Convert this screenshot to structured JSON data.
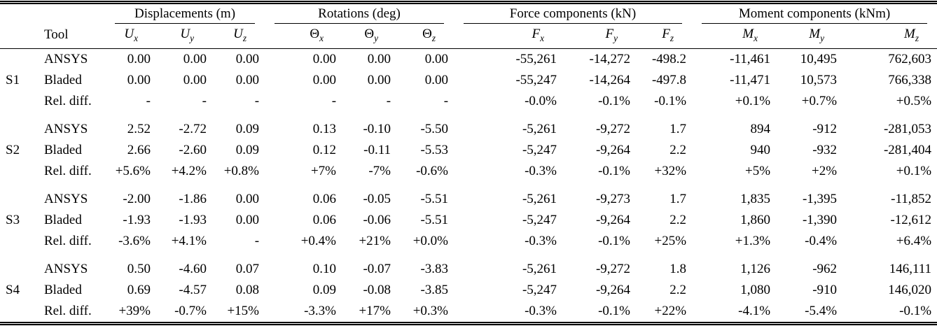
{
  "page": {
    "background": "#ffffff",
    "text_color": "#000000"
  },
  "chart_data": {
    "type": "table",
    "tool_header": "Tool",
    "column_groups": [
      {
        "label": "Displacements (m)"
      },
      {
        "label": "Rotations (deg)"
      },
      {
        "label": "Force components (kN)"
      },
      {
        "label": "Moment components (kNm)"
      }
    ],
    "columns": [
      {
        "base": "U",
        "sub": "x"
      },
      {
        "base": "U",
        "sub": "y"
      },
      {
        "base": "U",
        "sub": "z"
      },
      {
        "base": "Θ",
        "sub": "x"
      },
      {
        "base": "Θ",
        "sub": "y"
      },
      {
        "base": "Θ",
        "sub": "z"
      },
      {
        "base": "F",
        "sub": "x"
      },
      {
        "base": "F",
        "sub": "y"
      },
      {
        "base": "F",
        "sub": "z"
      },
      {
        "base": "M",
        "sub": "x"
      },
      {
        "base": "M",
        "sub": "y"
      },
      {
        "base": "M",
        "sub": "z"
      }
    ],
    "sections": [
      {
        "id": "S1",
        "rows": [
          {
            "tool": "ANSYS",
            "values": [
              "0.00",
              "0.00",
              "0.00",
              "0.00",
              "0.00",
              "0.00",
              "-55,261",
              "-14,272",
              "-498.2",
              "-11,461",
              "10,495",
              "762,603"
            ]
          },
          {
            "tool": "Bladed",
            "values": [
              "0.00",
              "0.00",
              "0.00",
              "0.00",
              "0.00",
              "0.00",
              "-55,247",
              "-14,264",
              "-497.8",
              "-11,471",
              "10,573",
              "766,338"
            ]
          },
          {
            "tool": "Rel. diff.",
            "values": [
              "-",
              "-",
              "-",
              "-",
              "-",
              "-",
              "-0.0%",
              "-0.1%",
              "-0.1%",
              "+0.1%",
              "+0.7%",
              "+0.5%"
            ]
          }
        ]
      },
      {
        "id": "S2",
        "rows": [
          {
            "tool": "ANSYS",
            "values": [
              "2.52",
              "-2.72",
              "0.09",
              "0.13",
              "-0.10",
              "-5.50",
              "-5,261",
              "-9,272",
              "1.7",
              "894",
              "-912",
              "-281,053"
            ]
          },
          {
            "tool": "Bladed",
            "values": [
              "2.66",
              "-2.60",
              "0.09",
              "0.12",
              "-0.11",
              "-5.53",
              "-5,247",
              "-9,264",
              "2.2",
              "940",
              "-932",
              "-281,404"
            ]
          },
          {
            "tool": "Rel. diff.",
            "values": [
              "+5.6%",
              "+4.2%",
              "+0.8%",
              "+7%",
              "-7%",
              "-0.6%",
              "-0.3%",
              "-0.1%",
              "+32%",
              "+5%",
              "+2%",
              "+0.1%"
            ]
          }
        ]
      },
      {
        "id": "S3",
        "rows": [
          {
            "tool": "ANSYS",
            "values": [
              "-2.00",
              "-1.86",
              "0.00",
              "0.06",
              "-0.05",
              "-5.51",
              "-5,261",
              "-9,273",
              "1.7",
              "1,835",
              "-1,395",
              "-11,852"
            ]
          },
          {
            "tool": "Bladed",
            "values": [
              "-1.93",
              "-1.93",
              "0.00",
              "0.06",
              "-0.06",
              "-5.51",
              "-5,247",
              "-9,264",
              "2.2",
              "1,860",
              "-1,390",
              "-12,612"
            ]
          },
          {
            "tool": "Rel. diff.",
            "values": [
              "-3.6%",
              "+4.1%",
              "-",
              "+0.4%",
              "+21%",
              "+0.0%",
              "-0.3%",
              "-0.1%",
              "+25%",
              "+1.3%",
              "-0.4%",
              "+6.4%"
            ]
          }
        ]
      },
      {
        "id": "S4",
        "rows": [
          {
            "tool": "ANSYS",
            "values": [
              "0.50",
              "-4.60",
              "0.07",
              "0.10",
              "-0.07",
              "-3.83",
              "-5,261",
              "-9,272",
              "1.8",
              "1,126",
              "-962",
              "146,111"
            ]
          },
          {
            "tool": "Bladed",
            "values": [
              "0.69",
              "-4.57",
              "0.08",
              "0.09",
              "-0.08",
              "-3.85",
              "-5,247",
              "-9,264",
              "2.2",
              "1,080",
              "-910",
              "146,020"
            ]
          },
          {
            "tool": "Rel. diff.",
            "values": [
              "+39%",
              "-0.7%",
              "+15%",
              "-3.3%",
              "+17%",
              "+0.3%",
              "-0.3%",
              "-0.1%",
              "+22%",
              "-4.1%",
              "-5.4%",
              "-0.1%"
            ]
          }
        ]
      }
    ]
  }
}
